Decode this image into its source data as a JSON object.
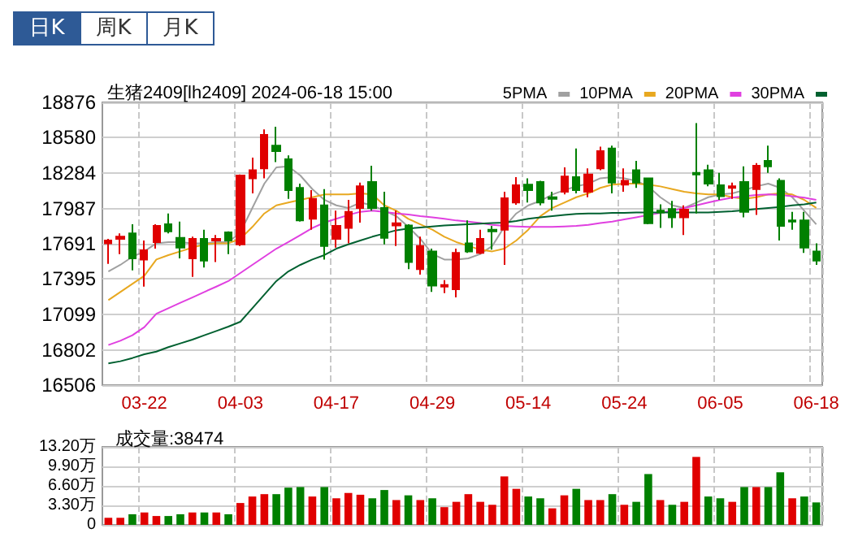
{
  "chart_data": [
    {
      "type": "candlestick",
      "title": "生猪2409[lh2409] 2024-06-18 15:00",
      "annotations": [
        "日K",
        "周K",
        "月K"
      ],
      "categories": [
        null,
        null,
        null,
        "03-22",
        null,
        null,
        null,
        null,
        null,
        null,
        null,
        "04-03",
        null,
        null,
        null,
        null,
        null,
        null,
        null,
        "04-17",
        null,
        null,
        null,
        null,
        null,
        null,
        null,
        "04-29",
        null,
        null,
        null,
        null,
        null,
        null,
        null,
        "05-14",
        null,
        null,
        null,
        null,
        null,
        null,
        null,
        "05-24",
        null,
        null,
        null,
        null,
        null,
        null,
        null,
        "06-05",
        null,
        null,
        null,
        null,
        null,
        null,
        null,
        "06-18"
      ],
      "ylim": [
        16506,
        18876
      ],
      "yticks": [
        16506,
        16802,
        17099,
        17395,
        17691,
        17987,
        18284,
        18580,
        18876
      ],
      "grid": true,
      "legend": "top right",
      "marker": "none",
      "ohlc": [
        [
          17695,
          17732,
          17523,
          17718
        ],
        [
          17732,
          17777,
          17605,
          17750
        ],
        [
          17777,
          17854,
          17468,
          17568
        ],
        [
          17559,
          17718,
          17332,
          17636
        ],
        [
          17705,
          17854,
          17650,
          17841
        ],
        [
          17854,
          17945,
          17777,
          17795
        ],
        [
          17741,
          17877,
          17568,
          17659
        ],
        [
          17568,
          17750,
          17414,
          17732
        ],
        [
          17732,
          17809,
          17491,
          17550
        ],
        [
          17718,
          17764,
          17537,
          17732
        ],
        [
          17786,
          17795,
          17605,
          17718
        ],
        [
          17686,
          18272,
          17673,
          18263
        ],
        [
          18240,
          18413,
          18113,
          18308
        ],
        [
          18322,
          18649,
          18240,
          18604
        ],
        [
          18513,
          18672,
          18376,
          18467
        ],
        [
          18399,
          18431,
          18068,
          18140
        ],
        [
          18159,
          18195,
          17877,
          17886
        ],
        [
          17900,
          18140,
          17809,
          18068
        ],
        [
          18013,
          18149,
          17559,
          17673
        ],
        [
          17732,
          17968,
          17659,
          17841
        ],
        [
          17823,
          18059,
          17695,
          17959
        ],
        [
          17991,
          18204,
          17868,
          18172
        ],
        [
          18208,
          18345,
          17968,
          17991
        ],
        [
          17991,
          18127,
          17686,
          17741
        ],
        [
          17845,
          17968,
          17673,
          17863
        ],
        [
          17845,
          17854,
          17478,
          17537
        ],
        [
          17478,
          17750,
          17432,
          17673
        ],
        [
          17627,
          17650,
          17287,
          17341
        ],
        [
          17332,
          17387,
          17278,
          17346
        ],
        [
          17310,
          17650,
          17241,
          17614
        ],
        [
          17695,
          17886,
          17614,
          17627
        ],
        [
          17614,
          17809,
          17605,
          17732
        ],
        [
          17809,
          17841,
          17641,
          17795
        ],
        [
          17809,
          18127,
          17514,
          18072
        ],
        [
          18036,
          18249,
          18018,
          18181
        ],
        [
          18186,
          18240,
          18036,
          18140
        ],
        [
          18208,
          18218,
          18013,
          18036
        ],
        [
          18081,
          18127,
          17968,
          18068
        ],
        [
          18127,
          18331,
          18104,
          18254
        ],
        [
          18249,
          18490,
          18113,
          18140
        ],
        [
          18127,
          18322,
          18081,
          18272
        ],
        [
          18322,
          18504,
          18308,
          18467
        ],
        [
          18490,
          18513,
          18113,
          18204
        ],
        [
          18186,
          18322,
          18127,
          18218
        ],
        [
          18308,
          18386,
          18159,
          18204
        ],
        [
          18240,
          18240,
          17854,
          17863
        ],
        [
          17968,
          18022,
          17823,
          17954
        ],
        [
          17982,
          18050,
          17823,
          17913
        ],
        [
          17913,
          18013,
          17764,
          17977
        ],
        [
          18286,
          18703,
          17945,
          18272
        ],
        [
          18308,
          18354,
          18172,
          18195
        ],
        [
          18181,
          18286,
          18059,
          18090
        ],
        [
          18159,
          18204,
          18068,
          18172
        ],
        [
          18208,
          18340,
          17913,
          17959
        ],
        [
          18149,
          18367,
          17932,
          18345
        ],
        [
          18386,
          18513,
          18286,
          18340
        ],
        [
          18218,
          18240,
          17718,
          17841
        ],
        [
          17886,
          17959,
          17809,
          17877
        ],
        [
          17886,
          17959,
          17614,
          17659
        ],
        [
          17627,
          17695,
          17514,
          17550
        ]
      ],
      "colors": [
        "#e00000",
        "#e00000",
        "#008000",
        "#e00000",
        "#e00000",
        "#008000",
        "#008000",
        "#e00000",
        "#008000",
        "#e00000",
        "#008000",
        "#e00000",
        "#e00000",
        "#e00000",
        "#008000",
        "#008000",
        "#008000",
        "#e00000",
        "#008000",
        "#e00000",
        "#e00000",
        "#e00000",
        "#008000",
        "#008000",
        "#e00000",
        "#008000",
        "#e00000",
        "#008000",
        "#e00000",
        "#e00000",
        "#008000",
        "#e00000",
        "#008000",
        "#e00000",
        "#e00000",
        "#008000",
        "#008000",
        "#008000",
        "#e00000",
        "#008000",
        "#e00000",
        "#e00000",
        "#008000",
        "#e00000",
        "#008000",
        "#008000",
        "#008000",
        "#008000",
        "#e00000",
        "#008000",
        "#008000",
        "#008000",
        "#e00000",
        "#008000",
        "#e00000",
        "#008000",
        "#008000",
        "#008000",
        "#008000",
        "#008000"
      ],
      "series": [
        {
          "type": "line",
          "name": "5PMA",
          "color": "#a0a0a0",
          "values": [
            17459,
            17514,
            17582,
            17627,
            17695,
            17705,
            17705,
            17695,
            17695,
            17705,
            17705,
            17786,
            17991,
            18195,
            18331,
            18340,
            18263,
            18149,
            18059,
            18013,
            17991,
            18036,
            18013,
            17968,
            17922,
            17832,
            17732,
            17605,
            17559,
            17559,
            17568,
            17605,
            17673,
            17832,
            17945,
            18013,
            18050,
            18104,
            18140,
            18172,
            18195,
            18240,
            18249,
            18240,
            18218,
            18172,
            18081,
            18013,
            17991,
            18036,
            18081,
            18104,
            18113,
            18140,
            18172,
            18195,
            18159,
            18081,
            17968,
            17854
          ]
        },
        {
          "type": "line",
          "name": "10PMA",
          "color": "#e8a820",
          "values": [
            17219,
            17287,
            17355,
            17423,
            17559,
            17596,
            17627,
            17659,
            17686,
            17695,
            17695,
            17732,
            17832,
            17945,
            18013,
            18036,
            18059,
            18081,
            18104,
            18104,
            18104,
            18113,
            18104,
            18013,
            17968,
            17900,
            17854,
            17809,
            17750,
            17705,
            17673,
            17641,
            17627,
            17650,
            17718,
            17809,
            17922,
            17991,
            18036,
            18081,
            18113,
            18159,
            18186,
            18195,
            18195,
            18186,
            18172,
            18149,
            18127,
            18113,
            18104,
            18104,
            18081,
            18068,
            18081,
            18104,
            18113,
            18104,
            18059,
            17991
          ]
        },
        {
          "type": "line",
          "name": "20PMA",
          "color": "#e040e0",
          "values": [
            16842,
            16878,
            16924,
            16992,
            17105,
            17151,
            17196,
            17241,
            17287,
            17332,
            17378,
            17446,
            17514,
            17582,
            17650,
            17705,
            17764,
            17823,
            17868,
            17900,
            17932,
            17959,
            17968,
            17959,
            17945,
            17936,
            17922,
            17913,
            17900,
            17886,
            17877,
            17864,
            17850,
            17841,
            17836,
            17832,
            17832,
            17832,
            17836,
            17841,
            17850,
            17864,
            17877,
            17895,
            17913,
            17932,
            17950,
            17968,
            17991,
            18013,
            18036,
            18059,
            18077,
            18090,
            18099,
            18104,
            18099,
            18090,
            18077,
            18059
          ]
        },
        {
          "type": "line",
          "name": "30PMA",
          "color": "#006030",
          "values": [
            16688,
            16706,
            16733,
            16765,
            16787,
            16824,
            16856,
            16887,
            16924,
            16960,
            16996,
            17037,
            17151,
            17264,
            17378,
            17459,
            17514,
            17559,
            17596,
            17650,
            17686,
            17718,
            17750,
            17777,
            17804,
            17818,
            17827,
            17836,
            17845,
            17850,
            17854,
            17859,
            17864,
            17868,
            17882,
            17900,
            17913,
            17922,
            17932,
            17941,
            17945,
            17945,
            17950,
            17950,
            17954,
            17954,
            17954,
            17954,
            17954,
            17954,
            17954,
            17959,
            17963,
            17972,
            17982,
            17991,
            18000,
            18013,
            18022,
            18036
          ]
        }
      ]
    },
    {
      "type": "bar",
      "title": "成交量:38474",
      "categories": [
        null,
        null,
        null,
        null,
        null,
        null,
        null,
        null,
        null,
        null,
        null,
        null,
        null,
        null,
        null,
        null,
        null,
        null,
        null,
        null,
        null,
        null,
        null,
        null,
        null,
        null,
        null,
        null,
        null,
        null,
        null,
        null,
        null,
        null,
        null,
        null,
        null,
        null,
        null,
        null,
        null,
        null,
        null,
        null,
        null,
        null,
        null,
        null,
        null,
        null,
        null,
        null,
        null,
        null,
        null,
        null,
        null,
        null,
        null,
        null
      ],
      "tick_labels": "y",
      "grid": true,
      "ylim": [
        0,
        13.2
      ],
      "yticks": [
        0,
        {
          "value": 3.3,
          "label": "3.30万"
        },
        {
          "value": 6.6,
          "label": "6.60万"
        },
        {
          "value": 9.9,
          "label": "9.90万"
        },
        {
          "value": 13.2,
          "label": "13.20万"
        }
      ],
      "values": [
        1.2,
        1.2,
        1.8,
        2.1,
        1.5,
        1.5,
        1.8,
        2.1,
        2.1,
        2.1,
        1.8,
        3.7,
        4.8,
        5.2,
        5.2,
        6.3,
        6.4,
        4.8,
        6.4,
        4.5,
        5.4,
        5.1,
        4.5,
        5.9,
        4.2,
        5.0,
        4.2,
        4.5,
        3.0,
        3.9,
        5.2,
        3.9,
        3.4,
        8.2,
        6.1,
        4.8,
        4.5,
        2.8,
        5.0,
        6.1,
        4.2,
        4.2,
        5.2,
        3.4,
        3.9,
        8.6,
        4.2,
        3.4,
        3.9,
        11.5,
        4.8,
        4.5,
        3.9,
        6.4,
        6.4,
        6.4,
        8.9,
        4.5,
        4.8,
        3.8
      ],
      "colors": [
        "#e00000",
        "#e00000",
        "#008000",
        "#e00000",
        "#e00000",
        "#008000",
        "#008000",
        "#e00000",
        "#008000",
        "#e00000",
        "#008000",
        "#e00000",
        "#e00000",
        "#e00000",
        "#008000",
        "#008000",
        "#008000",
        "#e00000",
        "#008000",
        "#e00000",
        "#e00000",
        "#e00000",
        "#008000",
        "#008000",
        "#e00000",
        "#008000",
        "#e00000",
        "#008000",
        "#e00000",
        "#e00000",
        "#e00000",
        "#e00000",
        "#e00000",
        "#e00000",
        "#e00000",
        "#008000",
        "#008000",
        "#e00000",
        "#e00000",
        "#008000",
        "#e00000",
        "#e00000",
        "#008000",
        "#e00000",
        "#008000",
        "#008000",
        "#e00000",
        "#008000",
        "#e00000",
        "#e00000",
        "#008000",
        "#008000",
        "#e00000",
        "#008000",
        "#e00000",
        "#008000",
        "#008000",
        "#e00000",
        "#008000",
        "#008000"
      ]
    }
  ]
}
